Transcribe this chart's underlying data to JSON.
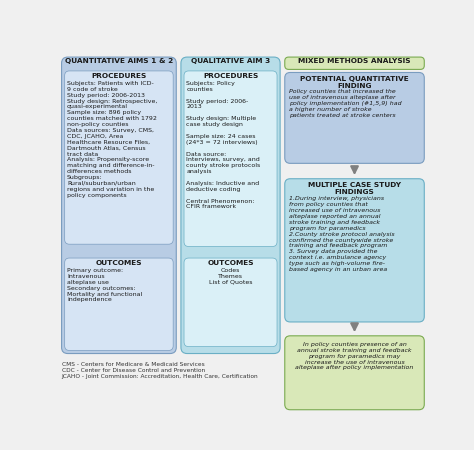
{
  "background_color": "#f0f0f0",
  "col1_header": "QUANTITATIVE AIMS 1 & 2",
  "col2_header": "QUALITATIVE AIM 3",
  "col3_header": "MIXED METHODS ANALYSIS",
  "col1_bg": "#b8cce4",
  "col2_bg": "#b7dde8",
  "col3_top_bg": "#b8cce4",
  "col3_mid_bg": "#b7dde8",
  "col3_bot_bg": "#d9e8b8",
  "inner_box1_bg": "#d6e4f4",
  "inner_box2_bg": "#daf0f7",
  "col3_header_bg": "#d9e8b8",
  "box1_proc_title": "PROCEDURES",
  "box1_proc_text": "Subjects: Patients with ICD-\n9 code of stroke\nStudy period: 2006-2013\nStudy design: Retrospective,\nquasi-experimental\nSample size: 896 policy\ncounties matched with 1792\nnon-policy counties\nData sources: Survey, CMS,\nCDC, JCAHO, Area\nHealthcare Resource Files,\nDartmouth Atlas, Census\ntract data\nAnalysis: Propensity-score\nmatching and difference-in-\ndifferences methods\nSubgroups:\nRural/suburban/urban\nregions and variation in the\npolicy components",
  "box1_out_title": "OUTCOMES",
  "box1_out_text": "Primary outcome:\nIntravenous\nalteplase use\nSecondary outcomes:\nMortality and functional\nindependence",
  "box2_proc_title": "PROCEDURES",
  "box2_proc_text": "Subjects: Policy\ncounties\n\nStudy period: 2006-\n2013\n\nStudy design: Multiple\ncase study design\n\nSample size: 24 cases\n(24*3 = 72 interviews)\n\nData source:\nInterviews, survey, and\ncounty stroke protocols\nanalysis\n\nAnalysis: Inductive and\ndeductive coding\n\nCentral Phenomenon:\nCFIR framework",
  "box2_out_title": "OUTCOMES",
  "box2_out_text": "Codes\nThemes\nList of Quotes",
  "box3_top_title": "POTENTIAL QUANTITATIVE\nFINDING",
  "box3_top_text": "Policy counties that increased the\nuse of intravenous alteplase after\npolicy implementation (#1,5,9) had\na higher number of stroke\npatients treated at stroke centers",
  "box3_mid_title": "MULTIPLE CASE STUDY\nFINDINGS",
  "box3_mid_text": "1.During interview, physicians\nfrom policy counties that\nincreased use of intravenous\nalteplase reported an annual\nstroke training and feedback\nprogram for paramedics\n2.County stroke protocol analysis\nconfirmed the countywide stroke\ntraining and feedback program\n3. Survey data provided the\ncontext i.e. ambulance agency\ntype such as high-volume fire-\nbased agency in an urban area",
  "box3_bot_text": "In policy counties presence of an\nannual stroke training and feedback\nprogram for paramedics may\nincrease the use of intravenous\nalteplase after policy implementation",
  "footnote": "CMS - Centers for Medicare & Medicaid Services\nCDC - Center for Disease Control and Prevention\nJCAHO - Joint Commission: Accreditation, Health Care, Certification",
  "arrow_color": "#808080",
  "edge_color1": "#7a9cbf",
  "edge_color2": "#6aafc5",
  "edge_color3": "#7aaa50"
}
